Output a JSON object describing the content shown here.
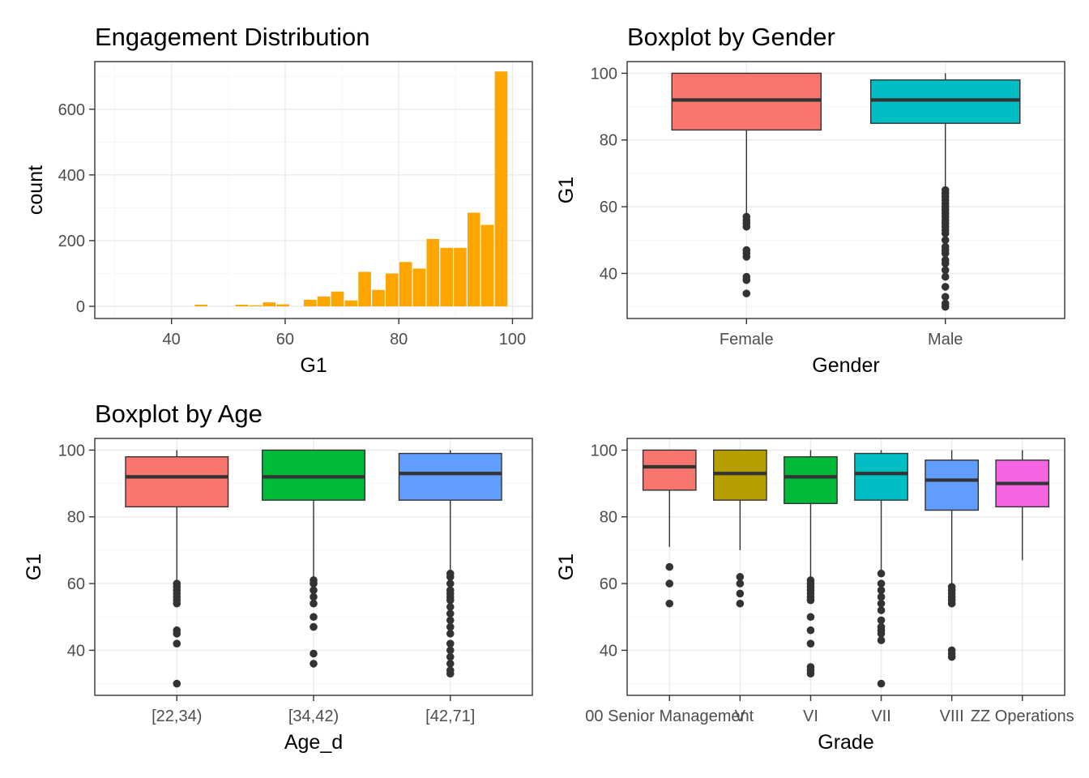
{
  "chart_data": [
    {
      "id": "hist",
      "type": "bar",
      "title": "Engagement Distribution",
      "xlabel": "G1",
      "ylabel": "count",
      "xlim": [
        26.5,
        103.5
      ],
      "ylim": [
        -37,
        745
      ],
      "x_ticks": [
        40,
        60,
        80,
        100
      ],
      "y_ticks": [
        0,
        200,
        400,
        600
      ],
      "bar_color": "#FFA500",
      "bin_width": 2.4,
      "bins": [
        {
          "x": 45.2,
          "count": 5
        },
        {
          "x": 52.4,
          "count": 5
        },
        {
          "x": 54.8,
          "count": 3
        },
        {
          "x": 57.2,
          "count": 12
        },
        {
          "x": 59.6,
          "count": 6
        },
        {
          "x": 64.4,
          "count": 20
        },
        {
          "x": 66.8,
          "count": 30
        },
        {
          "x": 69.2,
          "count": 45
        },
        {
          "x": 71.6,
          "count": 18
        },
        {
          "x": 74.0,
          "count": 105
        },
        {
          "x": 76.4,
          "count": 50
        },
        {
          "x": 78.8,
          "count": 100
        },
        {
          "x": 81.2,
          "count": 135
        },
        {
          "x": 83.6,
          "count": 115
        },
        {
          "x": 86.0,
          "count": 205
        },
        {
          "x": 88.4,
          "count": 178
        },
        {
          "x": 90.8,
          "count": 178
        },
        {
          "x": 93.2,
          "count": 285
        },
        {
          "x": 95.6,
          "count": 248
        },
        {
          "x": 98.0,
          "count": 715
        }
      ]
    },
    {
      "id": "gender",
      "type": "box",
      "title": "Boxplot by Gender",
      "xlabel": "Gender",
      "ylabel": "G1",
      "ylim": [
        26.5,
        103.5
      ],
      "y_ticks": [
        40,
        60,
        80,
        100
      ],
      "groups": [
        {
          "label": "Female",
          "color": "#F8766D",
          "min": 58,
          "q1": 83,
          "median": 92,
          "q3": 100,
          "max": 100,
          "outliers": [
            57,
            56,
            55,
            54,
            47,
            46,
            45,
            39,
            38,
            34
          ]
        },
        {
          "label": "Male",
          "color": "#00BFC4",
          "min": 66,
          "q1": 85,
          "median": 92,
          "q3": 98,
          "max": 100,
          "outliers": [
            65,
            64,
            63,
            62,
            61,
            60,
            59,
            58,
            57,
            56,
            55,
            54,
            53,
            52,
            50,
            48,
            47,
            46,
            44,
            43,
            41,
            39,
            36,
            33,
            31,
            30
          ]
        }
      ]
    },
    {
      "id": "age",
      "type": "box",
      "title": "Boxplot by Age",
      "xlabel": "Age_d",
      "ylabel": "G1",
      "ylim": [
        26.5,
        103.5
      ],
      "y_ticks": [
        40,
        60,
        80,
        100
      ],
      "groups": [
        {
          "label": "[22,34)",
          "color": "#F8766D",
          "min": 61,
          "q1": 83,
          "median": 92,
          "q3": 98,
          "max": 100,
          "outliers": [
            60,
            59,
            58,
            57,
            56,
            55,
            54,
            46,
            45,
            42,
            30
          ]
        },
        {
          "label": "[34,42)",
          "color": "#00BA38",
          "min": 62,
          "q1": 85,
          "median": 92,
          "q3": 100,
          "max": 100,
          "outliers": [
            61,
            60,
            58,
            56,
            54,
            50,
            47,
            39,
            36
          ]
        },
        {
          "label": "[42,71]",
          "color": "#619CFF",
          "min": 64,
          "q1": 85,
          "median": 93,
          "q3": 99,
          "max": 100,
          "outliers": [
            63,
            62,
            60,
            58,
            57,
            56,
            55,
            53,
            51,
            49,
            47,
            45,
            42,
            40,
            38,
            36,
            34,
            33
          ]
        }
      ]
    },
    {
      "id": "grade",
      "type": "box",
      "title": "",
      "xlabel": "Grade",
      "ylabel": "G1",
      "ylim": [
        26.5,
        103.5
      ],
      "y_ticks": [
        40,
        60,
        80,
        100
      ],
      "groups": [
        {
          "label": "00 Senior Management",
          "color": "#F8766D",
          "min": 71,
          "q1": 88,
          "median": 95,
          "q3": 100,
          "max": 100,
          "outliers": [
            65,
            60,
            54
          ]
        },
        {
          "label": "V",
          "color": "#B79F00",
          "min": 70,
          "q1": 85,
          "median": 93,
          "q3": 100,
          "max": 100,
          "outliers": [
            62,
            60,
            57,
            54
          ]
        },
        {
          "label": "VI",
          "color": "#00BA38",
          "min": 62,
          "q1": 84,
          "median": 92,
          "q3": 98,
          "max": 100,
          "outliers": [
            61,
            60,
            59,
            58,
            57,
            56,
            55,
            50,
            46,
            42,
            35,
            34,
            33
          ]
        },
        {
          "label": "VII",
          "color": "#00BFC4",
          "min": 64,
          "q1": 85,
          "median": 93,
          "q3": 99,
          "max": 100,
          "outliers": [
            63,
            60,
            58,
            56,
            54,
            52,
            49,
            47,
            46,
            45,
            43,
            30
          ]
        },
        {
          "label": "VIII",
          "color": "#619CFF",
          "min": 60,
          "q1": 82,
          "median": 91,
          "q3": 97,
          "max": 100,
          "outliers": [
            59,
            58,
            57,
            56,
            55,
            54,
            40,
            39,
            38
          ]
        },
        {
          "label": "ZZ Operations",
          "color": "#F564E3",
          "min": 67,
          "q1": 83,
          "median": 90,
          "q3": 97,
          "max": 100,
          "outliers": []
        }
      ]
    }
  ]
}
